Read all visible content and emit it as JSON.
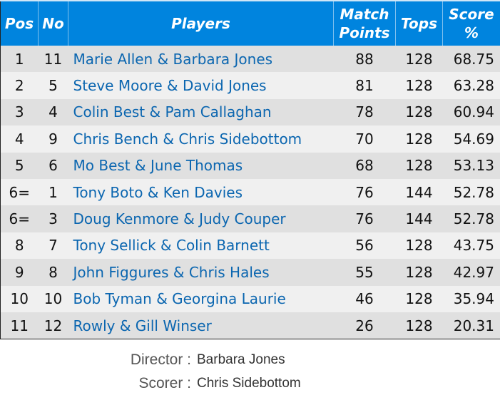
{
  "headers": {
    "pos": "Pos",
    "no": "No",
    "players": "Players",
    "match_points_1": "Match",
    "match_points_2": "Points",
    "tops": "Tops",
    "score_1": "Score",
    "score_2": "%"
  },
  "rows": [
    {
      "pos": "1",
      "no": "11",
      "players": "Marie Allen & Barbara Jones",
      "mp": "88",
      "tops": "128",
      "score": "68.75"
    },
    {
      "pos": "2",
      "no": "5",
      "players": "Steve Moore & David Jones",
      "mp": "81",
      "tops": "128",
      "score": "63.28"
    },
    {
      "pos": "3",
      "no": "4",
      "players": "Colin Best & Pam Callaghan",
      "mp": "78",
      "tops": "128",
      "score": "60.94"
    },
    {
      "pos": "4",
      "no": "9",
      "players": "Chris Bench & Chris Sidebottom",
      "mp": "70",
      "tops": "128",
      "score": "54.69"
    },
    {
      "pos": "5",
      "no": "6",
      "players": "Mo Best & June Thomas",
      "mp": "68",
      "tops": "128",
      "score": "53.13"
    },
    {
      "pos": "6=",
      "no": "1",
      "players": "Tony Boto & Ken Davies",
      "mp": "76",
      "tops": "144",
      "score": "52.78"
    },
    {
      "pos": "6=",
      "no": "3",
      "players": "Doug Kenmore & Judy Couper",
      "mp": "76",
      "tops": "144",
      "score": "52.78"
    },
    {
      "pos": "8",
      "no": "7",
      "players": "Tony Sellick & Colin Barnett",
      "mp": "56",
      "tops": "128",
      "score": "43.75"
    },
    {
      "pos": "9",
      "no": "8",
      "players": "John Figgures & Chris Hales",
      "mp": "55",
      "tops": "128",
      "score": "42.97"
    },
    {
      "pos": "10",
      "no": "10",
      "players": "Bob Tyman & Georgina Laurie",
      "mp": "46",
      "tops": "128",
      "score": "35.94"
    },
    {
      "pos": "11",
      "no": "12",
      "players": "Rowly & Gill Winser",
      "mp": "26",
      "tops": "128",
      "score": "20.31"
    }
  ],
  "footer": {
    "director_label": "Director :",
    "director": "Barbara Jones",
    "scorer_label": "Scorer :",
    "scorer": "Chris Sidebottom"
  },
  "colors": {
    "header_bg": "#0084de",
    "player_link": "#0b66b0",
    "row_odd": "#e0e0e0",
    "row_even": "#f0f0f0"
  }
}
